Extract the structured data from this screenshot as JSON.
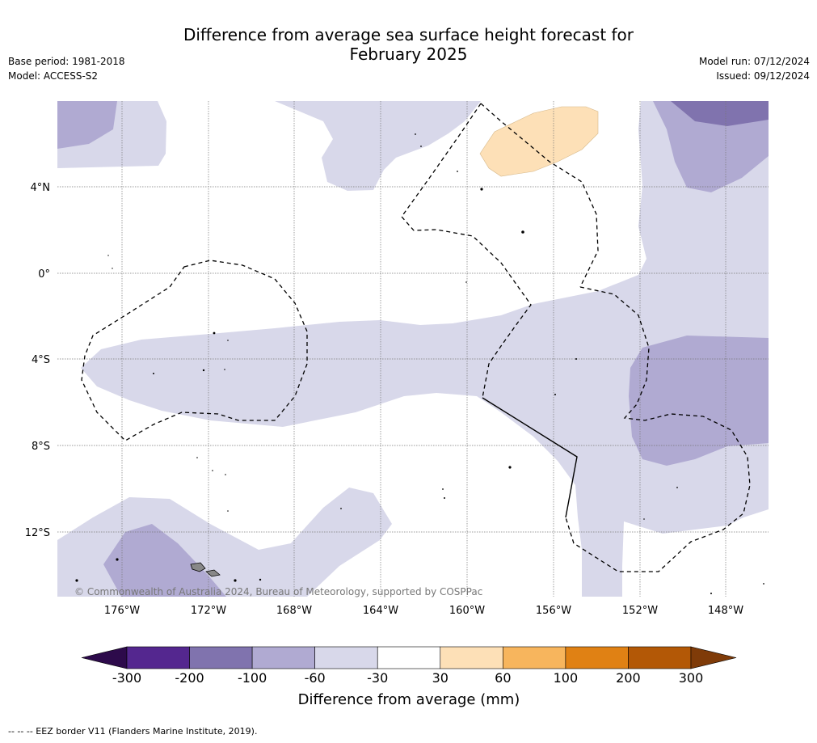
{
  "title_line1": "Difference from average sea surface height forecast for",
  "title_line2": "February 2025",
  "meta_left": {
    "base_period": "Base period: 1981-2018",
    "model": "Model: ACCESS-S2"
  },
  "meta_right": {
    "model_run": "Model run: 07/12/2024",
    "issued": "Issued: 09/12/2024"
  },
  "map": {
    "lon_labels": [
      "176°W",
      "172°W",
      "168°W",
      "164°W",
      "160°W",
      "156°W",
      "152°W",
      "148°W"
    ],
    "lat_labels": [
      "4°N",
      "0°",
      "4°S",
      "8°S",
      "12°S"
    ],
    "copyright": "© Commonwealth of Australia 2024, Bureau of Meteorology, supported by COSPPac",
    "colors": {
      "minus_30_60": "#d8d8ea",
      "minus_60_100": "#b0aad2",
      "minus_100_200": "#8073ae",
      "plus_30_60": "#fde0b7",
      "land": "#888888",
      "eez": "#000000"
    }
  },
  "colorbar": {
    "tick_labels": [
      "-300",
      "-200",
      "-100",
      "-60",
      "-30",
      "30",
      "60",
      "100",
      "200",
      "300"
    ],
    "colors": [
      "#2d0a4b",
      "#54278f",
      "#8073ae",
      "#b0aad2",
      "#d8d8ea",
      "#ffffff",
      "#fde0b7",
      "#f7b55d",
      "#e08114",
      "#b35806",
      "#7f3b08"
    ],
    "label": "Difference from average (mm)"
  },
  "footer": "--  --  -- EEZ border V11 (Flanders Marine Institute, 2019)."
}
